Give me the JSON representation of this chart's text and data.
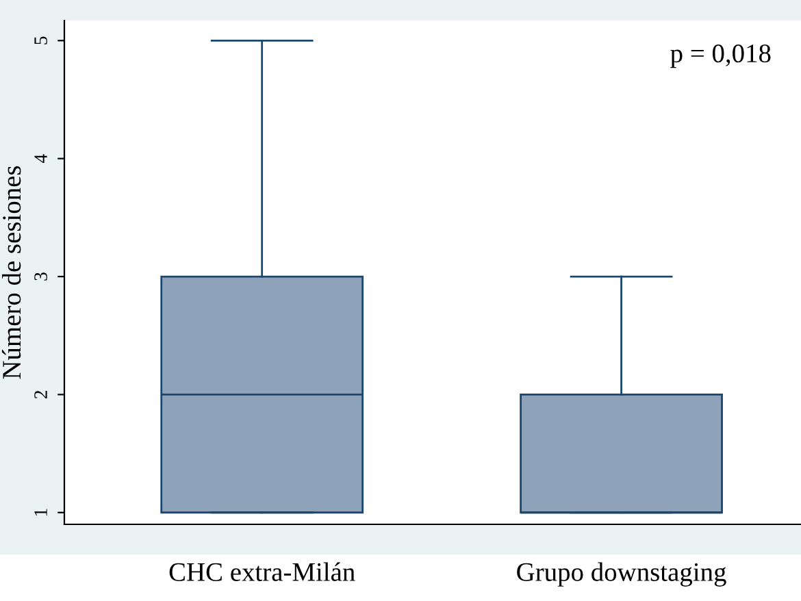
{
  "chart_data": {
    "type": "box",
    "ylabel": "Número de sesiones",
    "categories": [
      "CHC extra-Milán",
      "Grupo downstaging"
    ],
    "boxes": [
      {
        "low": 1,
        "q1": 1,
        "median": 2,
        "q3": 3,
        "high": 5
      },
      {
        "low": 1,
        "q1": 1,
        "median": 1,
        "q3": 2,
        "high": 3
      }
    ],
    "color": "#8ea3b9",
    "ylim": [
      0.9,
      5.17
    ],
    "yticks": [
      1,
      2,
      3,
      4,
      5
    ],
    "grid": false,
    "legend": false,
    "annotations": [
      "p = 0,018"
    ]
  }
}
